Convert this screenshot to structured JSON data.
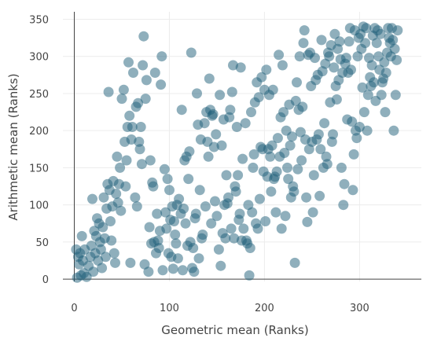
{
  "chart_data": {
    "type": "scatter",
    "title": "",
    "xlabel": "Geometric mean (Ranks)",
    "ylabel": "Arithmetic mean (Ranks)",
    "xlim": [
      -12,
      365
    ],
    "ylim": [
      -3,
      360
    ],
    "x_ticks": [
      0,
      100,
      200,
      300
    ],
    "y_ticks": [
      0,
      50,
      100,
      150,
      200,
      250,
      300,
      350
    ],
    "grid": true,
    "legend": "none",
    "marker_color": "#1f5f7a",
    "marker_opacity": 0.5,
    "series": [
      {
        "points": [
          [
            2,
            40
          ],
          [
            3,
            2
          ],
          [
            4,
            30
          ],
          [
            5,
            20
          ],
          [
            6,
            35
          ],
          [
            7,
            5
          ],
          [
            8,
            58
          ],
          [
            9,
            25
          ],
          [
            10,
            8
          ],
          [
            11,
            40
          ],
          [
            13,
            3
          ],
          [
            15,
            18
          ],
          [
            17,
            30
          ],
          [
            18,
            45
          ],
          [
            19,
            108
          ],
          [
            20,
            10
          ],
          [
            21,
            65
          ],
          [
            22,
            35
          ],
          [
            23,
            58
          ],
          [
            24,
            82
          ],
          [
            25,
            25
          ],
          [
            26,
            75
          ],
          [
            27,
            50
          ],
          [
            28,
            40
          ],
          [
            29,
            15
          ],
          [
            30,
            70
          ],
          [
            31,
            110
          ],
          [
            32,
            55
          ],
          [
            33,
            30
          ],
          [
            34,
            95
          ],
          [
            35,
            128
          ],
          [
            36,
            252
          ],
          [
            37,
            120
          ],
          [
            38,
            78
          ],
          [
            39,
            52
          ],
          [
            40,
            98
          ],
          [
            41,
            132
          ],
          [
            42,
            35
          ],
          [
            43,
            22
          ],
          [
            44,
            115
          ],
          [
            45,
            165
          ],
          [
            46,
            103
          ],
          [
            47,
            128
          ],
          [
            48,
            150
          ],
          [
            49,
            92
          ],
          [
            50,
            243
          ],
          [
            52,
            255
          ],
          [
            53,
            185
          ],
          [
            54,
            125
          ],
          [
            55,
            160
          ],
          [
            56,
            205
          ],
          [
            57,
            292
          ],
          [
            58,
            220
          ],
          [
            59,
            22
          ],
          [
            60,
            188
          ],
          [
            61,
            205
          ],
          [
            62,
            278
          ],
          [
            64,
            110
          ],
          [
            65,
            232
          ],
          [
            66,
            98
          ],
          [
            67,
            237
          ],
          [
            68,
            185
          ],
          [
            69,
            175
          ],
          [
            70,
            205
          ],
          [
            71,
            155
          ],
          [
            72,
            288
          ],
          [
            73,
            327
          ],
          [
            74,
            20
          ],
          [
            75,
            243
          ],
          [
            76,
            268
          ],
          [
            78,
            10
          ],
          [
            79,
            70
          ],
          [
            80,
            160
          ],
          [
            81,
            48
          ],
          [
            82,
            130
          ],
          [
            83,
            125
          ],
          [
            84,
            50
          ],
          [
            85,
            278
          ],
          [
            86,
            35
          ],
          [
            87,
            88
          ],
          [
            88,
            52
          ],
          [
            89,
            42
          ],
          [
            90,
            65
          ],
          [
            91,
            262
          ],
          [
            92,
            300
          ],
          [
            93,
            12
          ],
          [
            95,
            148
          ],
          [
            96,
            90
          ],
          [
            97,
            68
          ],
          [
            98,
            135
          ],
          [
            99,
            35
          ],
          [
            100,
            120
          ],
          [
            101,
            80
          ],
          [
            102,
            30
          ],
          [
            103,
            98
          ],
          [
            104,
            14
          ],
          [
            105,
            78
          ],
          [
            106,
            60
          ],
          [
            107,
            48
          ],
          [
            108,
            100
          ],
          [
            109,
            28
          ],
          [
            110,
            108
          ],
          [
            112,
            88
          ],
          [
            113,
            228
          ],
          [
            114,
            12
          ],
          [
            115,
            95
          ],
          [
            116,
            160
          ],
          [
            117,
            75
          ],
          [
            118,
            165
          ],
          [
            119,
            45
          ],
          [
            120,
            135
          ],
          [
            121,
            172
          ],
          [
            122,
            50
          ],
          [
            123,
            305
          ],
          [
            124,
            15
          ],
          [
            125,
            42
          ],
          [
            126,
            10
          ],
          [
            127,
            82
          ],
          [
            128,
            88
          ],
          [
            129,
            250
          ],
          [
            130,
            208
          ],
          [
            131,
            28
          ],
          [
            132,
            120
          ],
          [
            133,
            188
          ],
          [
            134,
            55
          ],
          [
            135,
            60
          ],
          [
            137,
            210
          ],
          [
            138,
            98
          ],
          [
            139,
            225
          ],
          [
            140,
            185
          ],
          [
            141,
            165
          ],
          [
            142,
            270
          ],
          [
            143,
            228
          ],
          [
            144,
            75
          ],
          [
            145,
            220
          ],
          [
            146,
            222
          ],
          [
            147,
            178
          ],
          [
            148,
            105
          ],
          [
            149,
            195
          ],
          [
            150,
            85
          ],
          [
            152,
            40
          ],
          [
            153,
            248
          ],
          [
            154,
            18
          ],
          [
            155,
            180
          ],
          [
            156,
            62
          ],
          [
            157,
            215
          ],
          [
            158,
            100
          ],
          [
            159,
            55
          ],
          [
            160,
            140
          ],
          [
            161,
            102
          ],
          [
            162,
            110
          ],
          [
            163,
            218
          ],
          [
            164,
            228
          ],
          [
            165,
            68
          ],
          [
            166,
            252
          ],
          [
            167,
            288
          ],
          [
            168,
            55
          ],
          [
            169,
            125
          ],
          [
            170,
            118
          ],
          [
            171,
            205
          ],
          [
            172,
            140
          ],
          [
            173,
            80
          ],
          [
            174,
            88
          ],
          [
            175,
            285
          ],
          [
            176,
            52
          ],
          [
            177,
            162
          ],
          [
            178,
            68
          ],
          [
            180,
            210
          ],
          [
            181,
            52
          ],
          [
            182,
            48
          ],
          [
            183,
            100
          ],
          [
            184,
            5
          ],
          [
            185,
            42
          ],
          [
            186,
            225
          ],
          [
            187,
            90
          ],
          [
            188,
            150
          ],
          [
            189,
            168
          ],
          [
            190,
            238
          ],
          [
            191,
            75
          ],
          [
            192,
            265
          ],
          [
            193,
            68
          ],
          [
            194,
            245
          ],
          [
            195,
            108
          ],
          [
            196,
            178
          ],
          [
            197,
            272
          ],
          [
            198,
            175
          ],
          [
            199,
            145
          ],
          [
            200,
            255
          ],
          [
            201,
            78
          ],
          [
            202,
            282
          ],
          [
            203,
            138
          ],
          [
            204,
            175
          ],
          [
            205,
            248
          ],
          [
            206,
            165
          ],
          [
            207,
            118
          ],
          [
            208,
            180
          ],
          [
            209,
            255
          ],
          [
            210,
            135
          ],
          [
            211,
            138
          ],
          [
            212,
            90
          ],
          [
            213,
            145
          ],
          [
            214,
            190
          ],
          [
            215,
            302
          ],
          [
            216,
            165
          ],
          [
            217,
            218
          ],
          [
            218,
            68
          ],
          [
            219,
            288
          ],
          [
            220,
            225
          ],
          [
            221,
            170
          ],
          [
            222,
            85
          ],
          [
            223,
            200
          ],
          [
            224,
            150
          ],
          [
            225,
            135
          ],
          [
            226,
            235
          ],
          [
            227,
            180
          ],
          [
            228,
            110
          ],
          [
            229,
            192
          ],
          [
            230,
            125
          ],
          [
            231,
            118
          ],
          [
            232,
            22
          ],
          [
            233,
            240
          ],
          [
            234,
            265
          ],
          [
            235,
            148
          ],
          [
            236,
            228
          ],
          [
            237,
            300
          ],
          [
            238,
            198
          ],
          [
            239,
            160
          ],
          [
            240,
            232
          ],
          [
            241,
            318
          ],
          [
            242,
            335
          ],
          [
            243,
            188
          ],
          [
            244,
            110
          ],
          [
            245,
            77
          ],
          [
            246,
            302
          ],
          [
            247,
            175
          ],
          [
            248,
            305
          ],
          [
            249,
            260
          ],
          [
            250,
            185
          ],
          [
            251,
            90
          ],
          [
            252,
            140
          ],
          [
            253,
            298
          ],
          [
            254,
            268
          ],
          [
            255,
            188
          ],
          [
            256,
            275
          ],
          [
            257,
            195
          ],
          [
            258,
            112
          ],
          [
            259,
            175
          ],
          [
            260,
            322
          ],
          [
            261,
            280
          ],
          [
            262,
            150
          ],
          [
            263,
            210
          ],
          [
            264,
            290
          ],
          [
            265,
            165
          ],
          [
            266,
            155
          ],
          [
            267,
            305
          ],
          [
            268,
            300
          ],
          [
            269,
            238
          ],
          [
            270,
            315
          ],
          [
            271,
            185
          ],
          [
            272,
            195
          ],
          [
            273,
            285
          ],
          [
            274,
            330
          ],
          [
            275,
            260
          ],
          [
            276,
            242
          ],
          [
            277,
            310
          ],
          [
            278,
            268
          ],
          [
            279,
            320
          ],
          [
            280,
            296
          ],
          [
            281,
            150
          ],
          [
            282,
            278
          ],
          [
            283,
            100
          ],
          [
            284,
            128
          ],
          [
            285,
            290
          ],
          [
            286,
            298
          ],
          [
            287,
            215
          ],
          [
            288,
            278
          ],
          [
            289,
            320
          ],
          [
            290,
            338
          ],
          [
            291,
            282
          ],
          [
            292,
            212
          ],
          [
            293,
            120
          ],
          [
            294,
            168
          ],
          [
            295,
            335
          ],
          [
            296,
            200
          ],
          [
            297,
            190
          ],
          [
            298,
            300
          ],
          [
            299,
            325
          ],
          [
            300,
            205
          ],
          [
            301,
            330
          ],
          [
            302,
            310
          ],
          [
            303,
            258
          ],
          [
            304,
            340
          ],
          [
            305,
            225
          ],
          [
            306,
            318
          ],
          [
            307,
            338
          ],
          [
            308,
            200
          ],
          [
            309,
            248
          ],
          [
            310,
            298
          ],
          [
            311,
            272
          ],
          [
            312,
            260
          ],
          [
            313,
            288
          ],
          [
            314,
            328
          ],
          [
            315,
            265
          ],
          [
            316,
            338
          ],
          [
            317,
            240
          ],
          [
            318,
            318
          ],
          [
            319,
            335
          ],
          [
            320,
            300
          ],
          [
            321,
            282
          ],
          [
            322,
            330
          ],
          [
            323,
            248
          ],
          [
            324,
            265
          ],
          [
            325,
            270
          ],
          [
            326,
            292
          ],
          [
            327,
            225
          ],
          [
            328,
            278
          ],
          [
            329,
            305
          ],
          [
            330,
            338
          ],
          [
            331,
            325
          ],
          [
            332,
            318
          ],
          [
            333,
            300
          ],
          [
            334,
            338
          ],
          [
            335,
            322
          ],
          [
            336,
            200
          ],
          [
            337,
            310
          ],
          [
            338,
            248
          ],
          [
            339,
            295
          ],
          [
            340,
            335
          ]
        ]
      }
    ]
  }
}
